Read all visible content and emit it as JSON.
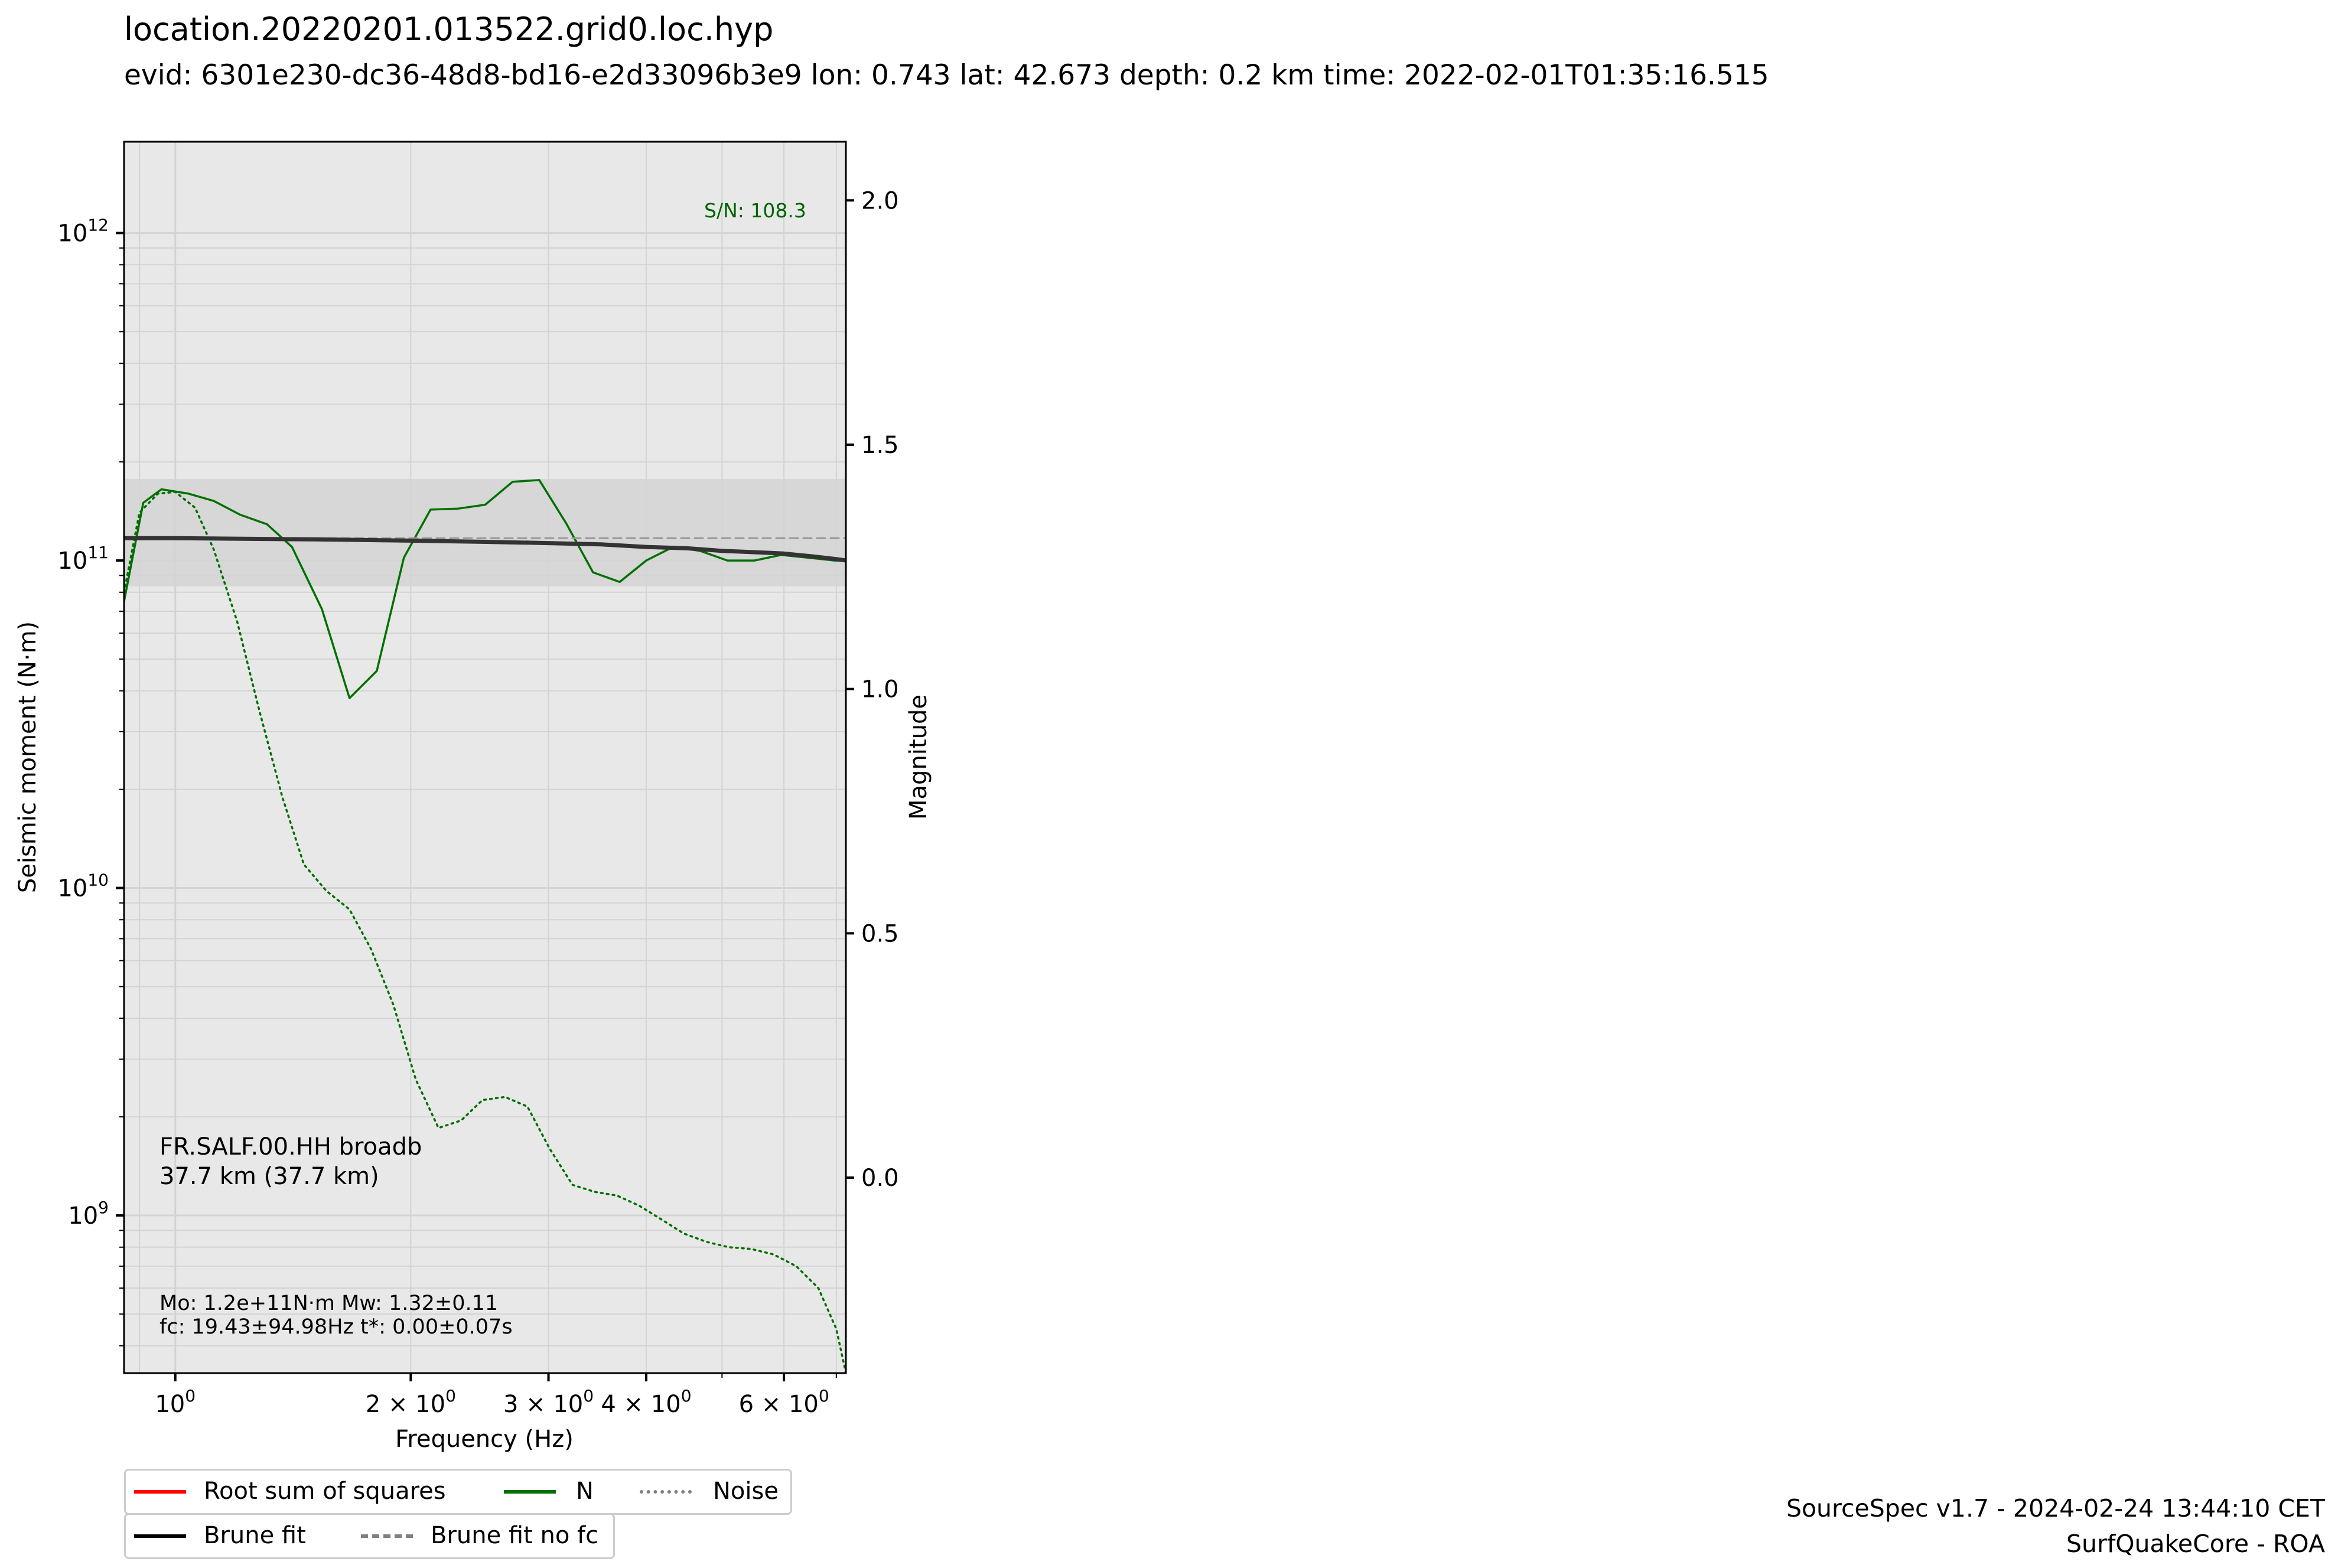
{
  "header": {
    "title": "location.20220201.013522.grid0.loc.hyp",
    "subtitle": "evid: 6301e230-dc36-48d8-bd16-e2d33096b3e9 lon: 0.743 lat: 42.673 depth: 0.2 km time: 2022-02-01T01:35:16.515"
  },
  "footer": {
    "line1": "SourceSpec v1.7 - 2024-02-24 13:44:10 CET",
    "line2": "SurfQuakeCore - ROA"
  },
  "annotations": {
    "station_line1": "FR.SALF.00.HH broadb",
    "station_line2": "37.7 km (37.7 km)",
    "sn": "S/N: 108.3",
    "params_line1": "Mo: 1.2e+11N·m Mw: 1.32±0.11",
    "params_line2": "fc: 19.43±94.98Hz t*: 0.00±0.07s"
  },
  "legend": {
    "rss": "Root sum of squares",
    "n": "N",
    "noise": "Noise",
    "brune": "Brune fit",
    "brune_nofc": "Brune fit no fc"
  },
  "colors": {
    "axes_bg": "#e8e8e8",
    "grid": "#d3d3d3",
    "band": "#d3d3d3",
    "rss": "#ff0000",
    "n": "#007000",
    "brune": "#333333",
    "brune_legend": "#000000",
    "brune_nofc": "#999999",
    "noise_legend": "#808080",
    "sn_text": "#006400"
  },
  "chart_data": {
    "type": "line",
    "xlabel": "Frequency (Hz)",
    "ylabel": "Seismic moment (N·m)",
    "y2label": "Magnitude",
    "xscale": "log",
    "yscale": "log",
    "xlim": [
      0.86,
      7.2
    ],
    "ylim": [
      330000000.0,
      1900000000000.0
    ],
    "y2lim": [
      -0.4,
      2.12
    ],
    "x_ticks": [
      {
        "value": 1,
        "label": "10",
        "exp": "0"
      },
      {
        "value": 2,
        "label": "2 × 10",
        "exp": "0"
      },
      {
        "value": 3,
        "label": "3 × 10",
        "exp": "0"
      },
      {
        "value": 4,
        "label": "4 × 10",
        "exp": "0"
      },
      {
        "value": 6,
        "label": "6 × 10",
        "exp": "0"
      }
    ],
    "y_ticks": [
      {
        "value": 1000000000.0,
        "label": "10",
        "exp": "9"
      },
      {
        "value": 10000000000.0,
        "label": "10",
        "exp": "10"
      },
      {
        "value": 100000000000.0,
        "label": "10",
        "exp": "11"
      },
      {
        "value": 1000000000000.0,
        "label": "10",
        "exp": "12"
      }
    ],
    "y2_ticks": [
      {
        "value": 0.0,
        "label": "0.0"
      },
      {
        "value": 0.5,
        "label": "0.5"
      },
      {
        "value": 1.0,
        "label": "1.0"
      },
      {
        "value": 1.5,
        "label": "1.5"
      },
      {
        "value": 2.0,
        "label": "2.0"
      }
    ],
    "mw_band": [
      1.21,
      1.43
    ],
    "grid": true,
    "legend_placement": "below the plot",
    "series": [
      {
        "name": "N",
        "style": "solid",
        "x": [
          0.86,
          0.91,
          0.96,
          1.04,
          1.12,
          1.21,
          1.31,
          1.41,
          1.54,
          1.67,
          1.81,
          1.96,
          2.12,
          2.3,
          2.49,
          2.7,
          2.92,
          3.16,
          3.42,
          3.7,
          4.0,
          4.33,
          4.69,
          5.08,
          5.5,
          5.95,
          6.44,
          6.97,
          7.2
        ],
        "y": [
          75000000000.0,
          150000000000.0,
          165000000000.0,
          160000000000.0,
          152000000000.0,
          138000000000.0,
          129000000000.0,
          110000000000.0,
          71000000000.0,
          38000000000.0,
          46000000000.0,
          102000000000.0,
          143000000000.0,
          144000000000.0,
          148000000000.0,
          174000000000.0,
          176000000000.0,
          130000000000.0,
          92000000000.0,
          86000000000.0,
          100000000000.0,
          110000000000.0,
          107000000000.0,
          100000000000.0,
          100000000000.0,
          104000000000.0,
          102000000000.0,
          100000000000.0,
          100000000000.0
        ]
      },
      {
        "name": "Noise",
        "style": "dotted",
        "x": [
          0.86,
          0.9,
          0.95,
          1.0,
          1.06,
          1.12,
          1.2,
          1.28,
          1.37,
          1.46,
          1.56,
          1.67,
          1.78,
          1.9,
          2.03,
          2.17,
          2.32,
          2.47,
          2.64,
          2.82,
          3.01,
          3.22,
          3.44,
          3.67,
          3.92,
          4.19,
          4.47,
          4.78,
          5.1,
          5.45,
          5.82,
          6.22,
          6.64,
          7.0,
          7.2
        ],
        "y": [
          80000000000.0,
          140000000000.0,
          160000000000.0,
          162000000000.0,
          145000000000.0,
          108000000000.0,
          65000000000.0,
          35000000000.0,
          19000000000.0,
          11800000000.0,
          9800000000.0,
          8600000000.0,
          6500000000.0,
          4400000000.0,
          2600000000.0,
          1850000000.0,
          1950000000.0,
          2250000000.0,
          2300000000.0,
          2150000000.0,
          1600000000.0,
          1240000000.0,
          1180000000.0,
          1150000000.0,
          1070000000.0,
          970000000.0,
          880000000.0,
          830000000.0,
          800000000.0,
          790000000.0,
          760000000.0,
          700000000.0,
          600000000.0,
          450000000.0,
          330000000.0
        ]
      },
      {
        "name": "Brune fit",
        "style": "solid",
        "x": [
          0.86,
          1.0,
          1.5,
          2.0,
          2.5,
          3.0,
          3.5,
          4.0,
          4.5,
          5.0,
          5.5,
          6.0,
          6.5,
          7.0,
          7.2
        ],
        "y": [
          117000000000.0,
          117000000000.0,
          116000000000.0,
          115000000000.0,
          114000000000.0,
          113000000000.0,
          112000000000.0,
          110000000000.0,
          109000000000.0,
          107000000000.0,
          106000000000.0,
          105000000000.0,
          103000000000.0,
          101000000000.0,
          100000000000.0
        ]
      },
      {
        "name": "Brune fit no fc",
        "style": "dashed",
        "x": [
          0.86,
          7.2
        ],
        "y": [
          117000000000.0,
          117000000000.0
        ]
      }
    ]
  }
}
